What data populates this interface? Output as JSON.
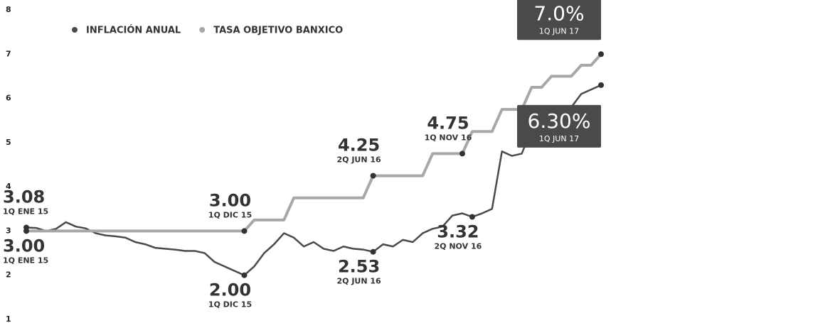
{
  "chart_data": {
    "type": "line",
    "categories": [
      "1Q ENE 15",
      null,
      null,
      null,
      null,
      null,
      null,
      null,
      null,
      null,
      null,
      null,
      null,
      null,
      null,
      null,
      null,
      null,
      null,
      null,
      null,
      null,
      "1Q DIC 15",
      null,
      null,
      null,
      null,
      null,
      null,
      null,
      null,
      null,
      null,
      null,
      null,
      "2Q JUN 16",
      null,
      null,
      null,
      null,
      null,
      null,
      null,
      null,
      "1Q NOV 16",
      "2Q NOV 16",
      null,
      null,
      null,
      null,
      null,
      null,
      null,
      null,
      null,
      null,
      null,
      null,
      "1Q JUN 17"
    ],
    "series": [
      {
        "name": "INFLACIÓN ANUAL",
        "color": "#4a4a4a",
        "values": [
          3.08,
          3.07,
          3.0,
          3.05,
          3.2,
          3.1,
          3.06,
          2.95,
          2.9,
          2.88,
          2.85,
          2.75,
          2.7,
          2.62,
          2.6,
          2.58,
          2.55,
          2.55,
          2.5,
          2.3,
          2.2,
          2.1,
          2.0,
          2.2,
          2.5,
          2.7,
          2.95,
          2.85,
          2.65,
          2.75,
          2.6,
          2.55,
          2.65,
          2.6,
          2.58,
          2.53,
          2.7,
          2.65,
          2.8,
          2.75,
          2.95,
          3.05,
          3.1,
          3.35,
          3.4,
          3.32,
          3.4,
          3.5,
          4.8,
          4.7,
          4.75,
          5.3,
          5.3,
          5.5,
          5.4,
          5.8,
          6.1,
          6.2,
          6.3
        ],
        "value_labels": [
          "3.08",
          null,
          null,
          null,
          null,
          null,
          null,
          null,
          null,
          null,
          null,
          null,
          null,
          null,
          null,
          null,
          null,
          null,
          null,
          null,
          null,
          null,
          "2.00",
          null,
          null,
          null,
          null,
          null,
          null,
          null,
          null,
          null,
          null,
          null,
          null,
          "2.53",
          null,
          null,
          null,
          null,
          null,
          null,
          null,
          null,
          null,
          "3.32",
          null,
          null,
          null,
          null,
          null,
          null,
          null,
          null,
          null,
          null,
          null,
          null,
          "6.30%"
        ]
      },
      {
        "name": "TASA OBJETIVO BANXICO",
        "color": "#a8a8a8",
        "values": [
          3.0,
          3.0,
          3.0,
          3.0,
          3.0,
          3.0,
          3.0,
          3.0,
          3.0,
          3.0,
          3.0,
          3.0,
          3.0,
          3.0,
          3.0,
          3.0,
          3.0,
          3.0,
          3.0,
          3.0,
          3.0,
          3.0,
          3.0,
          3.25,
          3.25,
          3.25,
          3.25,
          3.75,
          3.75,
          3.75,
          3.75,
          3.75,
          3.75,
          3.75,
          3.75,
          4.25,
          4.25,
          4.25,
          4.25,
          4.25,
          4.25,
          4.75,
          4.75,
          4.75,
          4.75,
          5.25,
          5.25,
          5.25,
          5.75,
          5.75,
          5.75,
          6.25,
          6.25,
          6.5,
          6.5,
          6.5,
          6.75,
          6.75,
          7.0
        ],
        "value_labels": [
          "3.00",
          null,
          null,
          null,
          null,
          null,
          null,
          null,
          null,
          null,
          null,
          null,
          null,
          null,
          null,
          null,
          null,
          null,
          null,
          null,
          null,
          null,
          "3.00",
          null,
          null,
          null,
          null,
          null,
          null,
          null,
          null,
          null,
          null,
          null,
          null,
          "4.25",
          null,
          null,
          null,
          null,
          null,
          null,
          null,
          null,
          "4.75",
          null,
          null,
          null,
          null,
          null,
          null,
          null,
          null,
          null,
          null,
          null,
          null,
          null,
          "7.0%"
        ]
      }
    ],
    "ylim": [
      1,
      8
    ],
    "yticks": [
      1,
      2,
      3,
      4,
      5,
      6,
      7,
      8
    ],
    "grid": false
  }
}
